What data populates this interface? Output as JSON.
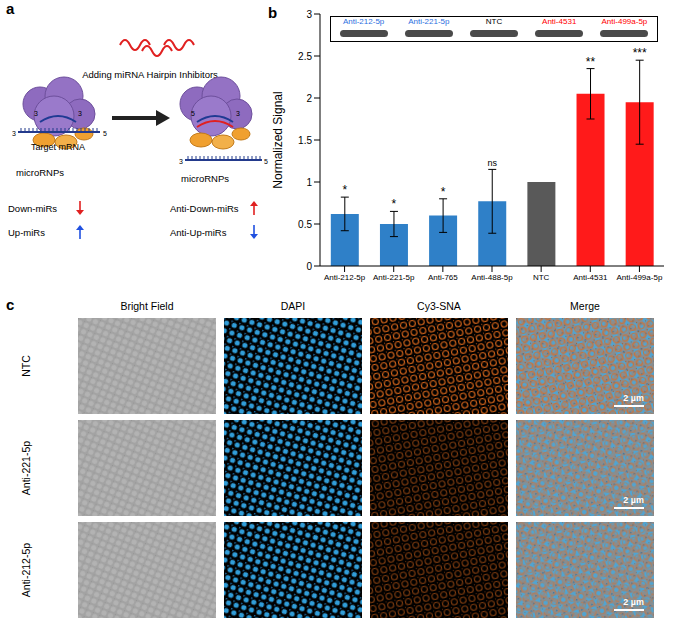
{
  "panel_labels": [
    "a",
    "b",
    "c"
  ],
  "panel_a": {
    "action": "Adding miRNA Hairpin Inhibitors",
    "complex": "microRNPs",
    "target": "Target mRNA",
    "strand_ends": {
      "five": "5",
      "three": "3"
    },
    "before": [
      "Down-miRs",
      "Up-miRs"
    ],
    "after": [
      "Anti-Down-miRs",
      "Anti-Up-miRs"
    ]
  },
  "chart_data": {
    "type": "bar",
    "categories": [
      "Anti-212-5p",
      "Anti-221-5p",
      "Anti-765",
      "Anti-488-5p",
      "NTC",
      "Anti-4531",
      "Anti-499a-5p"
    ],
    "values": [
      0.62,
      0.5,
      0.6,
      0.77,
      1,
      2.05,
      1.95
    ],
    "error": [
      0.2,
      0.15,
      0.2,
      0.38,
      null,
      0.3,
      0.5
    ],
    "significance": [
      "*",
      "*",
      "*",
      "ns",
      null,
      "**",
      "***"
    ],
    "colors": [
      "#2f80c8",
      "#2f80c8",
      "#2f80c8",
      "#2f80c8",
      "#595959",
      "#ff1a1a",
      "#ff1a1a"
    ],
    "y_label": "Normalized Signal",
    "ylim": [
      0,
      3
    ],
    "yticks": [
      0,
      0.5,
      1,
      1.5,
      2,
      2.5,
      3
    ],
    "grid": false,
    "inset": {
      "labels": [
        "Anti-212-5p",
        "Anti-221-5p",
        "NTC",
        "Anti-4531",
        "Anti-499a-5p"
      ],
      "colors": [
        "#2e6fe0",
        "#2e6fe0",
        "#000000",
        "#ff0000",
        "#ff0000"
      ]
    }
  },
  "panel_c": {
    "columns": [
      "Bright Field",
      "DAPI",
      "Cy3-SNA",
      "Merge"
    ],
    "rows": [
      "NTC",
      "Anti-221-5p",
      "Anti-212-5p"
    ],
    "scale_bar": "2 µm"
  }
}
